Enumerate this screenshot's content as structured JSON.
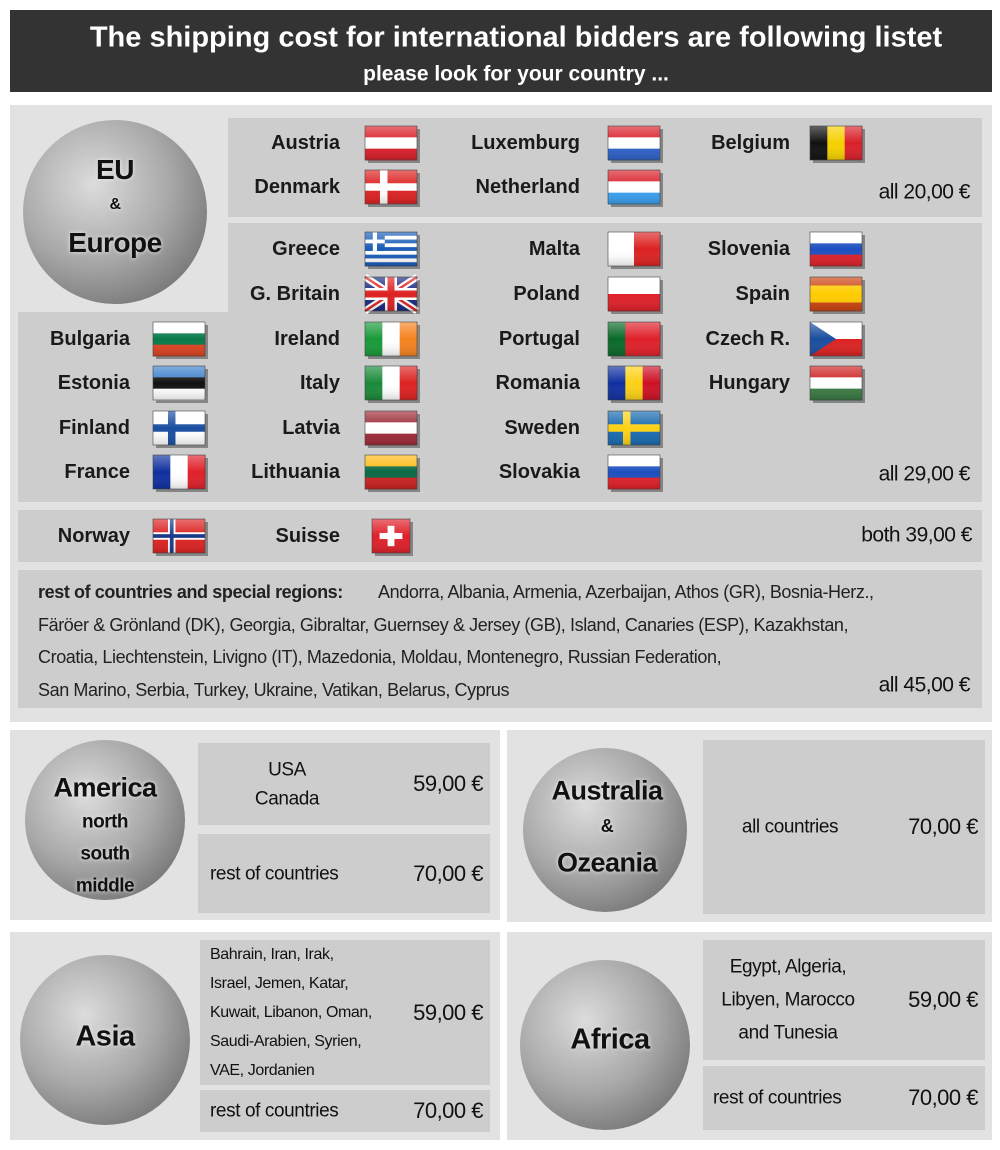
{
  "header": {
    "title": "The shipping cost for international bidders are following listet",
    "subtitle": "please look for your country ..."
  },
  "europe": {
    "region": [
      "EU",
      "&",
      "Europe"
    ],
    "groups": [
      {
        "countries": [
          "Austria",
          "Luxemburg",
          "Belgium",
          "Denmark",
          "Netherland"
        ],
        "price": "all 20,00 €"
      },
      {
        "countries": [
          "Greece",
          "Malta",
          "Slovenia",
          "G. Britain",
          "Poland",
          "Spain",
          "Bulgaria",
          "Ireland",
          "Portugal",
          "Czech R.",
          "Estonia",
          "Italy",
          "Romania",
          "Hungary",
          "Finland",
          "Latvia",
          "Sweden",
          "France",
          "Lithuania",
          "Slovakia"
        ],
        "price": "all 29,00 €"
      },
      {
        "countries": [
          "Norway",
          "Suisse"
        ],
        "price": "both 39,00 €"
      }
    ],
    "rest": {
      "label": "rest of countries and special regions:",
      "lines": [
        "Andorra, Albania, Armenia, Azerbaijan, Athos (GR), Bosnia-Herz.,",
        "Färöer & Grönland (DK), Georgia, Gibraltar, Guernsey & Jersey (GB), Island, Canaries (ESP), Kazakhstan,",
        "Croatia, Liechtenstein, Livigno (IT), Mazedonia, Moldau, Montenegro, Russian Federation,",
        "San Marino, Serbia, Turkey, Ukraine, Vatikan, Belarus, Cyprus"
      ],
      "price": "all 45,00 €"
    }
  },
  "america": {
    "region": [
      "America",
      "north",
      "south",
      "middle"
    ],
    "rows": [
      {
        "label": [
          "USA",
          "Canada"
        ],
        "price": "59,00 €"
      },
      {
        "label": [
          "rest of countries"
        ],
        "price": "70,00 €"
      }
    ]
  },
  "australia": {
    "region": [
      "Australia",
      "&",
      "Ozeania"
    ],
    "rows": [
      {
        "label": [
          "all countries"
        ],
        "price": "70,00 €"
      }
    ]
  },
  "asia": {
    "region": [
      "Asia"
    ],
    "rows": [
      {
        "label": [
          "Bahrain, Iran, Irak,",
          "Israel, Jemen, Katar,",
          "Kuwait, Libanon, Oman,",
          "Saudi-Arabien, Syrien,",
          "VAE, Jordanien"
        ],
        "price": "59,00 €"
      },
      {
        "label": [
          "rest of countries"
        ],
        "price": "70,00 €"
      }
    ]
  },
  "africa": {
    "region": [
      "Africa"
    ],
    "rows": [
      {
        "label": [
          "Egypt, Algeria,",
          "Libyen, Marocco",
          "and Tunesia"
        ],
        "price": "59,00 €"
      },
      {
        "label": [
          "rest of countries"
        ],
        "price": "70,00 €"
      }
    ]
  }
}
